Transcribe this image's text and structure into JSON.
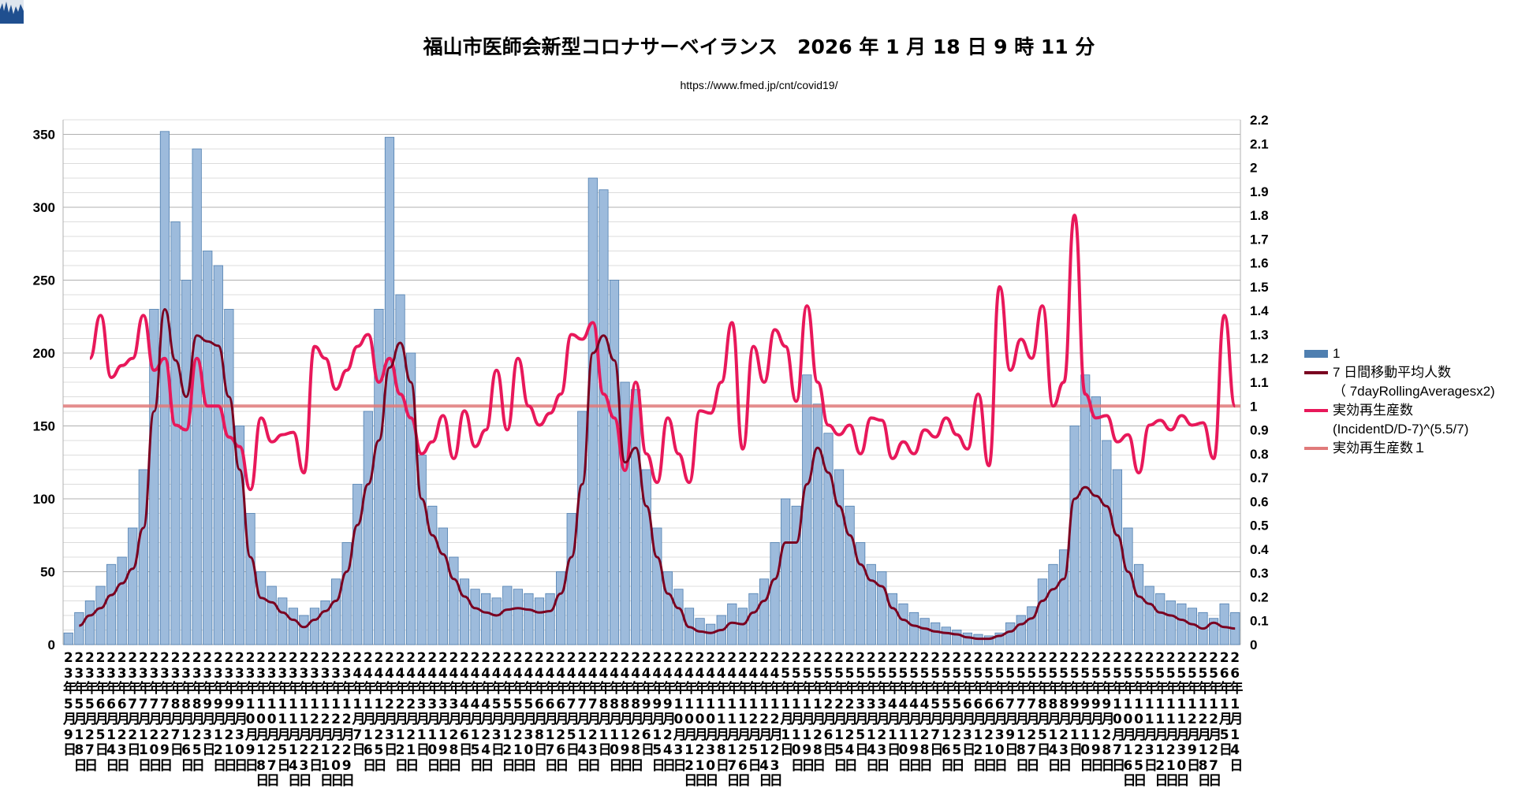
{
  "title": "福山市医師会新型コロナサーベイランス　2026 年 1 月 18 日 9 時 11 分",
  "url": "https://www.fmed.jp/cnt/covid19/",
  "colors": {
    "bars": "#4f7fb0",
    "bar_fill": "#9dbbdc",
    "avg": "#7a0020",
    "rt": "#e8185a",
    "rt1": "#e07a7a"
  },
  "legend": [
    {
      "label": "1",
      "kind": "bar"
    },
    {
      "label": "7 日間移動平均人数\n（ 7dayRollingAveragesx2)",
      "kind": "avg"
    },
    {
      "label": "実効再生産数\n(IncidentD/D-7)^(5.5/7)",
      "kind": "rt"
    },
    {
      "label": "実効再生産数１",
      "kind": "rt1"
    }
  ],
  "chart_data": {
    "type": "bar+line",
    "title": "福山市医師会新型コロナサーベイランス　2026 年 1 月 18 日 9 時 11 分",
    "y_left": {
      "min": 0,
      "max": 360,
      "ticks": [
        0,
        50,
        100,
        150,
        200,
        250,
        300,
        350
      ]
    },
    "y_right": {
      "min": 0,
      "max": 2.2,
      "ticks": [
        "0",
        "0.1",
        "0.2",
        "0.3",
        "0.4",
        "0.5",
        "0.6",
        "0.7",
        "0.8",
        "0.9",
        "1",
        "1.1",
        "1.2",
        "1.3",
        "1.4",
        "1.5",
        "1.6",
        "1.7",
        "1.8",
        "1.9",
        "2",
        "2.1",
        "2.2"
      ]
    },
    "grid": true,
    "legend_position": "right",
    "categories": [
      "23年5月9日",
      "23年5月18日",
      "23年5月27日",
      "23年6月5日",
      "23年6月14日",
      "23年6月23日",
      "23年7月2日",
      "23年7月11日",
      "23年7月20日",
      "23年7月29日",
      "23年8月7日",
      "23年8月16日",
      "23年8月25日",
      "23年9月3日",
      "23年9月12日",
      "23年9月21日",
      "23年9月30日",
      "23年10月9日",
      "23年10月18日",
      "23年10月27日",
      "23年11月5日",
      "23年11月14日",
      "23年11月23日",
      "23年12月2日",
      "23年12月11日",
      "23年12月20日",
      "23年12月29日",
      "24年1月7日",
      "24年1月16日",
      "24年1月25日",
      "24年2月3日",
      "24年2月12日",
      "24年2月21日",
      "24年3月1日",
      "24年3月10日",
      "24年3月19日",
      "24年3月28日",
      "24年4月6日",
      "24年4月15日",
      "24年4月24日",
      "24年5月3日",
      "24年5月12日",
      "24年5月21日",
      "24年5月30日",
      "24年6月8日",
      "24年6月17日",
      "24年6月26日",
      "24年7月5日",
      "24年7月14日",
      "24年7月23日",
      "24年8月1日",
      "24年8月10日",
      "24年8月19日",
      "24年8月28日",
      "24年9月6日",
      "24年9月15日",
      "24年9月24日",
      "24年10月3日",
      "24年10月12日",
      "24年10月21日",
      "24年10月30日",
      "24年11月8日",
      "24年11月17日",
      "24年11月26日",
      "24年12月5日",
      "24年12月14日",
      "24年12月23日",
      "25年1月1日",
      "25年1月10日",
      "25年1月19日",
      "25年1月28日",
      "25年2月6日",
      "25年2月15日",
      "25年2月24日",
      "25年3月5日",
      "25年3月14日",
      "25年3月23日",
      "25年4月1日",
      "25年4月10日",
      "25年4月19日",
      "25年4月28日",
      "25年5月7日",
      "25年5月16日",
      "25年5月25日",
      "25年6月3日",
      "25年6月12日",
      "25年6月21日",
      "25年6月30日",
      "25年7月9日",
      "25年7月18日",
      "25年7月27日",
      "25年8月5日",
      "25年8月14日",
      "25年8月23日",
      "25年9月1日",
      "25年9月10日",
      "25年9月19日",
      "25年9月28日",
      "25年10月7日",
      "25年10月16日",
      "25年10月25日",
      "25年11月3日",
      "25年11月12日",
      "25年11月21日",
      "25年11月30日",
      "25年12月9日",
      "25年12月18日",
      "25年12月27日",
      "26年1月5日",
      "26年1月14日"
    ],
    "series": [
      {
        "name": "1",
        "type": "bar",
        "axis": "left",
        "values": [
          8,
          22,
          30,
          40,
          55,
          60,
          80,
          120,
          230,
          352,
          290,
          250,
          340,
          270,
          260,
          230,
          150,
          90,
          50,
          40,
          32,
          25,
          20,
          25,
          30,
          45,
          70,
          110,
          160,
          230,
          348,
          240,
          200,
          130,
          95,
          80,
          60,
          45,
          38,
          35,
          32,
          40,
          38,
          35,
          32,
          35,
          50,
          90,
          160,
          320,
          312,
          250,
          180,
          175,
          120,
          80,
          50,
          38,
          25,
          18,
          14,
          20,
          28,
          25,
          35,
          45,
          70,
          100,
          95,
          185,
          165,
          145,
          120,
          95,
          70,
          55,
          50,
          35,
          28,
          22,
          18,
          15,
          12,
          10,
          8,
          7,
          6,
          8,
          15,
          20,
          26,
          45,
          55,
          65,
          150,
          185,
          170,
          140,
          120,
          80,
          55,
          40,
          35,
          30,
          28,
          25,
          22,
          18,
          28,
          22
        ]
      },
      {
        "name": "7 日間移動平均人数（ 7dayRollingAveragesx2)",
        "type": "line",
        "axis": "left",
        "values": [
          null,
          13,
          20,
          25,
          34,
          42,
          52,
          80,
          160,
          230,
          195,
          170,
          212,
          208,
          205,
          170,
          120,
          60,
          32,
          29,
          22,
          17,
          12,
          17,
          23,
          30,
          50,
          82,
          110,
          140,
          190,
          207,
          180,
          100,
          75,
          62,
          45,
          33,
          25,
          22,
          20,
          24,
          25,
          24,
          22,
          23,
          35,
          60,
          110,
          200,
          212,
          195,
          125,
          135,
          95,
          60,
          35,
          25,
          12,
          9,
          8,
          10,
          15,
          14,
          22,
          30,
          45,
          70,
          70,
          110,
          135,
          118,
          95,
          75,
          55,
          44,
          40,
          25,
          17,
          13,
          11,
          9,
          8,
          7,
          5,
          4,
          4,
          6,
          9,
          14,
          18,
          30,
          38,
          45,
          100,
          108,
          102,
          95,
          75,
          50,
          33,
          28,
          22,
          20,
          17,
          14,
          11,
          15,
          12,
          11
        ]
      },
      {
        "name": "実効再生産数(IncidentD/D-7)^(5.5/7)",
        "type": "line",
        "axis": "right",
        "values": [
          null,
          null,
          1.2,
          1.38,
          1.12,
          1.17,
          1.2,
          1.38,
          1.15,
          1.2,
          0.92,
          0.9,
          1.2,
          1.0,
          1.0,
          0.87,
          0.83,
          0.65,
          0.95,
          0.85,
          0.88,
          0.89,
          0.72,
          1.25,
          1.2,
          1.07,
          1.15,
          1.25,
          1.3,
          1.1,
          1.2,
          1.05,
          0.95,
          0.8,
          0.85,
          0.96,
          0.78,
          0.98,
          0.83,
          0.9,
          1.15,
          0.9,
          1.2,
          1.0,
          0.92,
          0.97,
          1.05,
          1.3,
          1.28,
          1.35,
          1.05,
          0.95,
          0.73,
          1.1,
          0.8,
          0.68,
          0.95,
          0.8,
          0.68,
          0.98,
          0.97,
          1.1,
          1.35,
          0.82,
          1.25,
          1.1,
          1.32,
          1.25,
          1.02,
          1.42,
          1.1,
          0.92,
          0.88,
          0.92,
          0.8,
          0.95,
          0.94,
          0.78,
          0.85,
          0.8,
          0.9,
          0.87,
          0.95,
          0.88,
          0.82,
          1.05,
          0.75,
          1.5,
          1.15,
          1.28,
          1.2,
          1.42,
          1.0,
          1.1,
          1.8,
          1.05,
          0.95,
          0.96,
          0.85,
          0.88,
          0.72,
          0.92,
          0.94,
          0.9,
          0.96,
          0.92,
          0.93,
          0.78,
          1.38,
          1.0
        ]
      },
      {
        "name": "実効再生産数１",
        "type": "line",
        "axis": "right",
        "constant": 1
      }
    ]
  }
}
